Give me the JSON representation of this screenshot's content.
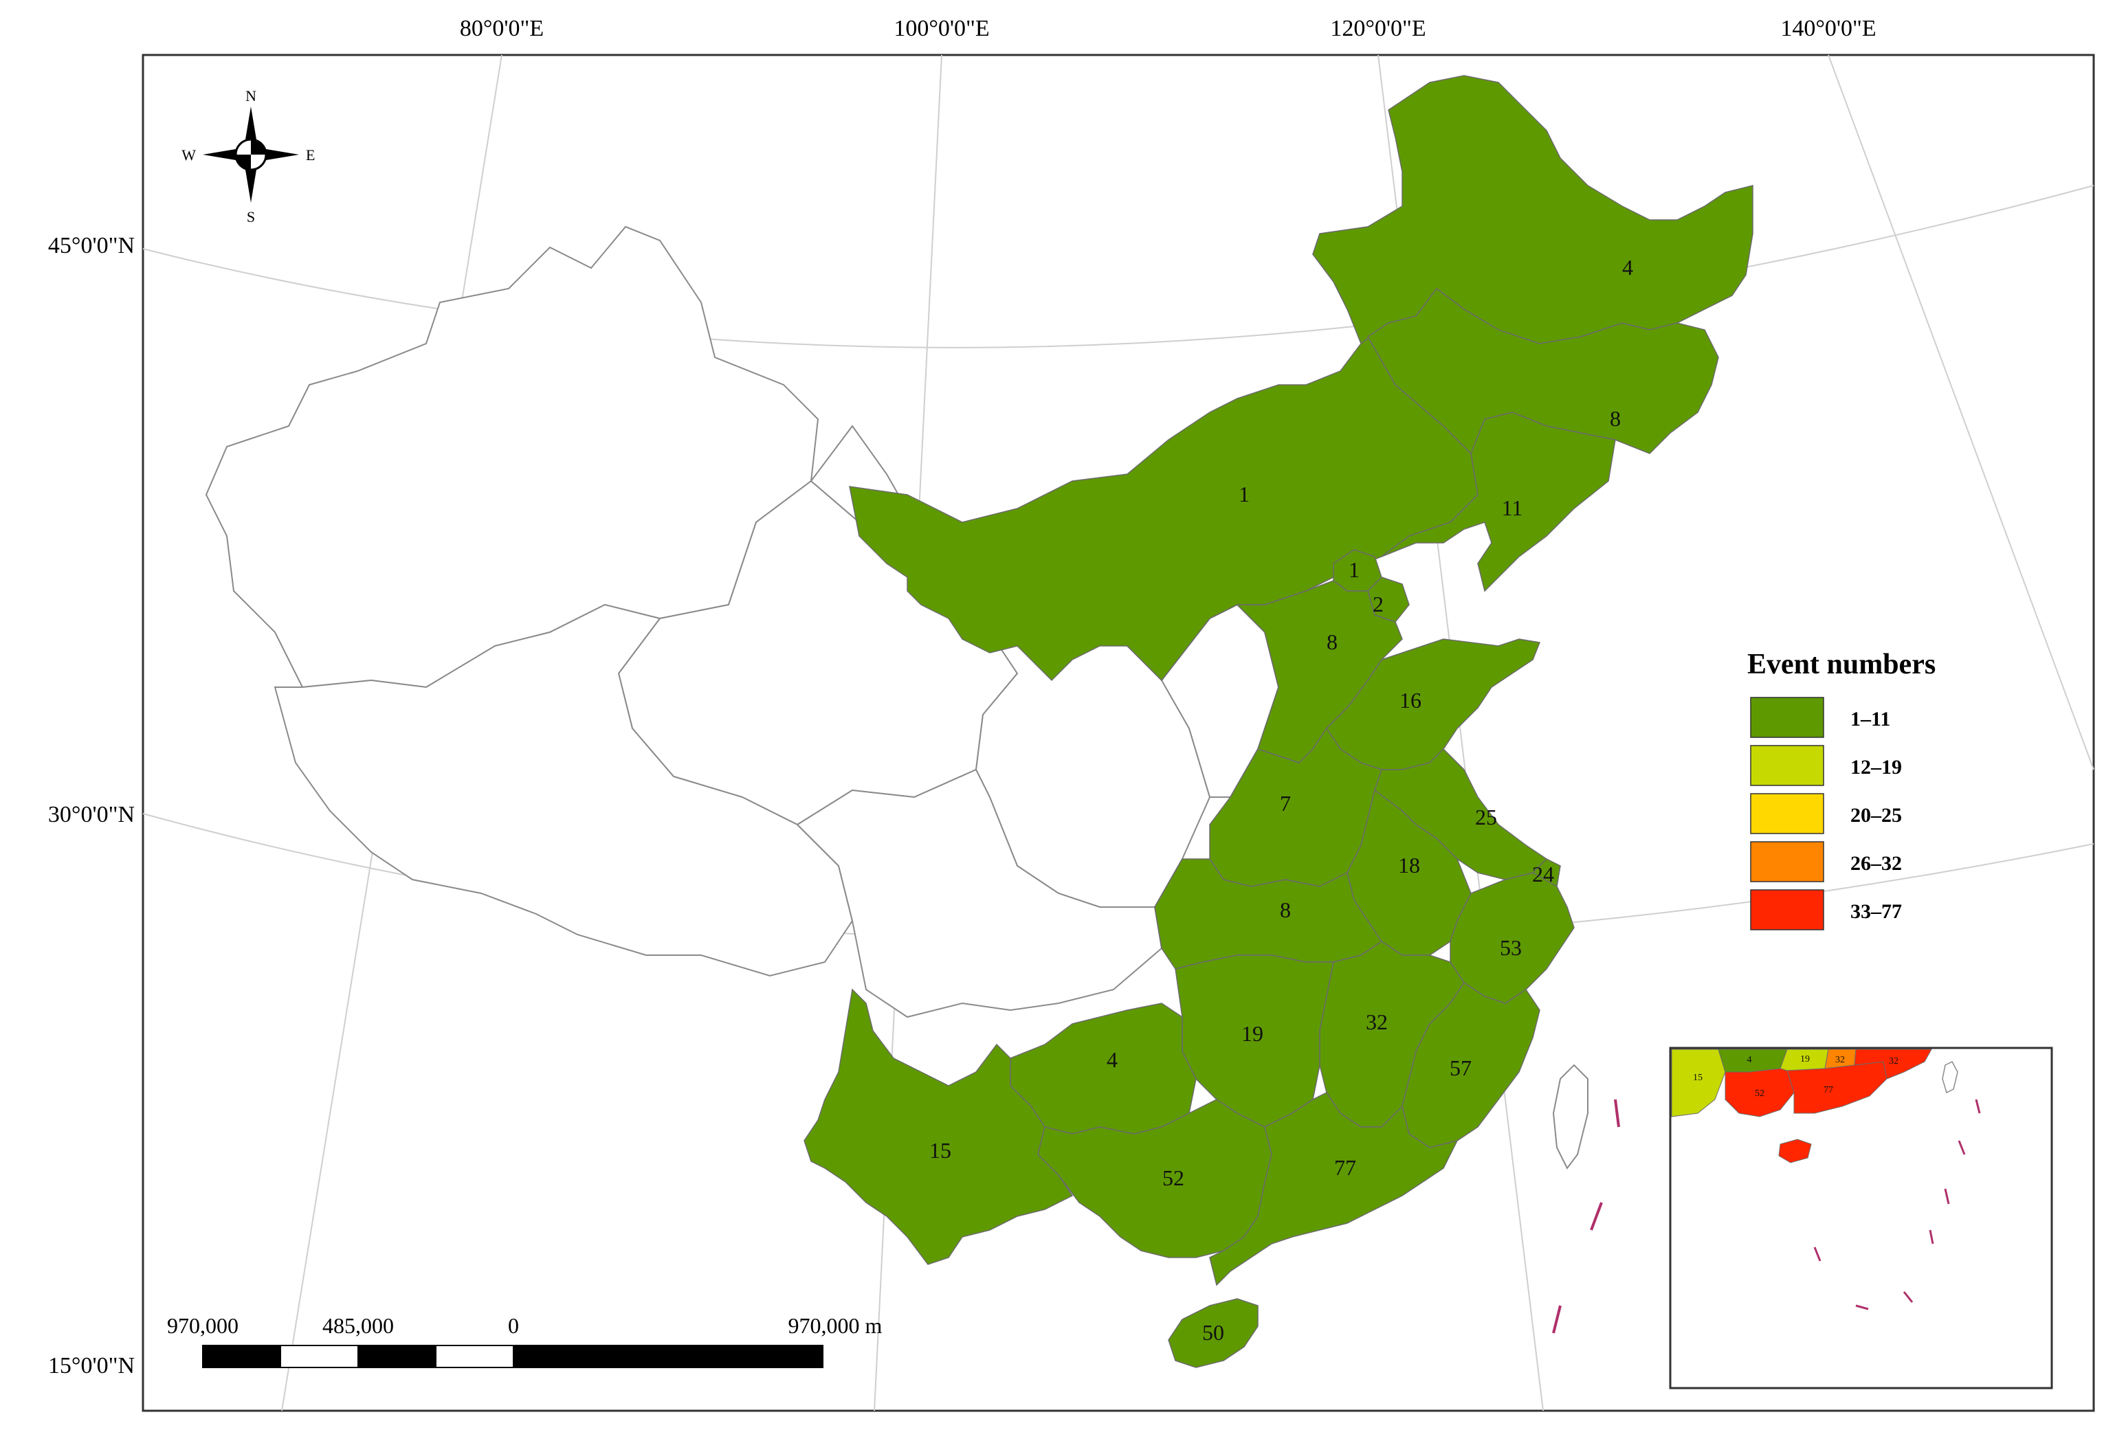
{
  "axes": {
    "lon_labels": [
      "80°0'0\"E",
      "100°0'0\"E",
      "120°0'0\"E",
      "140°0'0\"E"
    ],
    "lat_labels": [
      "45°0'0\"N",
      "30°0'0\"N",
      "15°0'0\"N"
    ]
  },
  "compass": {
    "n": "N",
    "s": "S",
    "e": "E",
    "w": "W"
  },
  "legend": {
    "title": "Event numbers",
    "classes": [
      {
        "label": "1–11",
        "color": "#5e9900"
      },
      {
        "label": "12–19",
        "color": "#c6d900"
      },
      {
        "label": "20–25",
        "color": "#ffd800"
      },
      {
        "label": "26–32",
        "color": "#ff8400"
      },
      {
        "label": "33–77",
        "color": "#ff2600"
      }
    ]
  },
  "scale_bar": {
    "labels": [
      "970,000",
      "485,000",
      "0",
      "970,000 m"
    ]
  },
  "regions": [
    {
      "id": "heilongjiang",
      "value": "4",
      "class": 0
    },
    {
      "id": "jilin",
      "value": "8",
      "class": 0
    },
    {
      "id": "liaoning",
      "value": "11",
      "class": 0
    },
    {
      "id": "inner-mongolia",
      "value": "1",
      "class": 0
    },
    {
      "id": "beijing",
      "value": "1",
      "class": 0
    },
    {
      "id": "tianjin",
      "value": "2",
      "class": 0
    },
    {
      "id": "hebei",
      "value": "8",
      "class": 0
    },
    {
      "id": "shandong",
      "value": "16",
      "class": 1
    },
    {
      "id": "henan",
      "value": "7",
      "class": 0
    },
    {
      "id": "jiangsu",
      "value": "25",
      "class": 2
    },
    {
      "id": "shanghai",
      "value": "24",
      "class": 2
    },
    {
      "id": "anhui",
      "value": "18",
      "class": 1
    },
    {
      "id": "hubei",
      "value": "8",
      "class": 0
    },
    {
      "id": "zhejiang",
      "value": "53",
      "class": 4
    },
    {
      "id": "hunan",
      "value": "19",
      "class": 1
    },
    {
      "id": "jiangxi",
      "value": "32",
      "class": 3
    },
    {
      "id": "fujian",
      "value": "57",
      "class": 4
    },
    {
      "id": "guizhou",
      "value": "4",
      "class": 0
    },
    {
      "id": "yunnan",
      "value": "15",
      "class": 1
    },
    {
      "id": "guangxi",
      "value": "52",
      "class": 4
    },
    {
      "id": "guangdong",
      "value": "77",
      "class": 4
    },
    {
      "id": "hainan",
      "value": "50",
      "class": 4
    }
  ],
  "inset": {
    "labels": [
      "15",
      "4",
      "19",
      "32",
      "32",
      "52",
      "77"
    ]
  }
}
